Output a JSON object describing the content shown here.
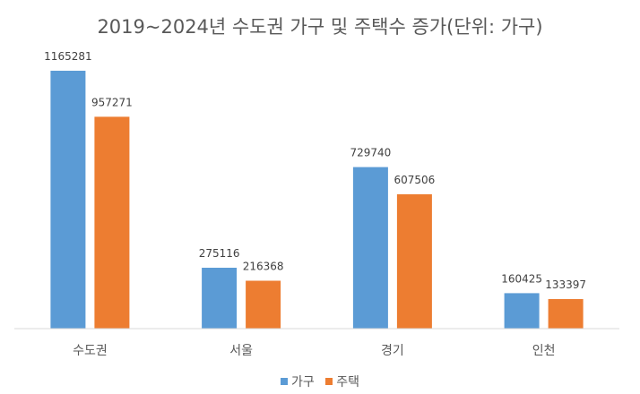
{
  "chart_data": {
    "type": "bar",
    "title": "2019~2024년 수도권 가구 및 주택수 증가(단위: 가구)",
    "categories": [
      "수도권",
      "서울",
      "경기",
      "인천"
    ],
    "series": [
      {
        "name": "가구",
        "values": [
          1165281,
          275116,
          729740,
          160425
        ],
        "color": "#5B9BD5"
      },
      {
        "name": "주택",
        "values": [
          957271,
          216368,
          607506,
          133397
        ],
        "color": "#ED7D31"
      }
    ],
    "ylim": [
      0,
      1400000
    ],
    "grid": false,
    "legend": "bottom",
    "data_labels": true
  }
}
